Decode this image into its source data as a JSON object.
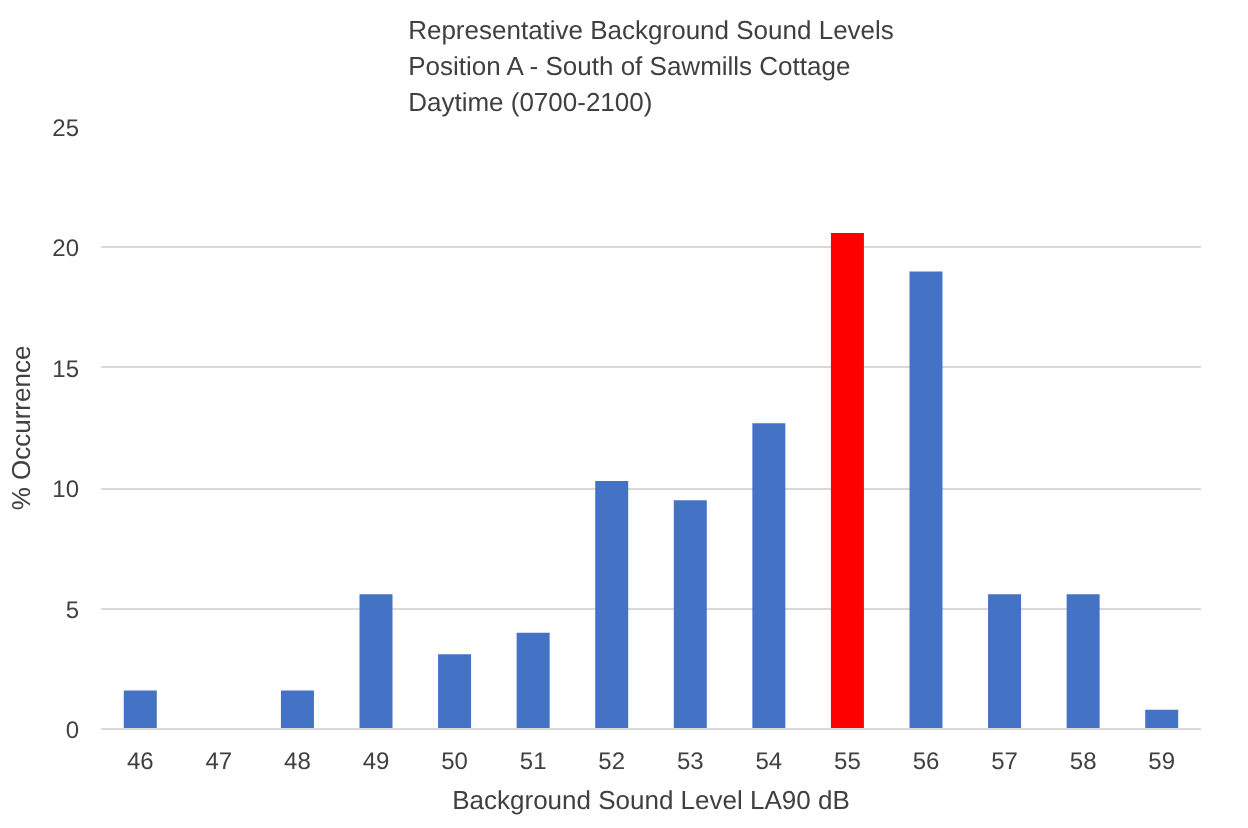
{
  "chart_data": {
    "type": "bar",
    "title": "Representative Background Sound Levels\nPosition  A - South of Sawmills Cottage\nDaytime (0700-2100)",
    "xlabel": "Background Sound Level LA90 dB",
    "ylabel": "% Occurrence",
    "categories": [
      "46",
      "47",
      "48",
      "49",
      "50",
      "51",
      "52",
      "53",
      "54",
      "55",
      "56",
      "57",
      "58",
      "59"
    ],
    "values": [
      1.6,
      0,
      1.6,
      5.6,
      3.1,
      4.0,
      10.3,
      9.5,
      12.7,
      20.6,
      19.0,
      5.6,
      5.6,
      0.8
    ],
    "colors": [
      "#4472c4",
      "#4472c4",
      "#4472c4",
      "#4472c4",
      "#4472c4",
      "#4472c4",
      "#4472c4",
      "#4472c4",
      "#4472c4",
      "#ff0000",
      "#4472c4",
      "#4472c4",
      "#4472c4",
      "#4472c4"
    ],
    "ylim": [
      0,
      25
    ],
    "yticks": [
      0,
      5,
      10,
      15,
      20,
      25
    ],
    "grid": "y"
  }
}
